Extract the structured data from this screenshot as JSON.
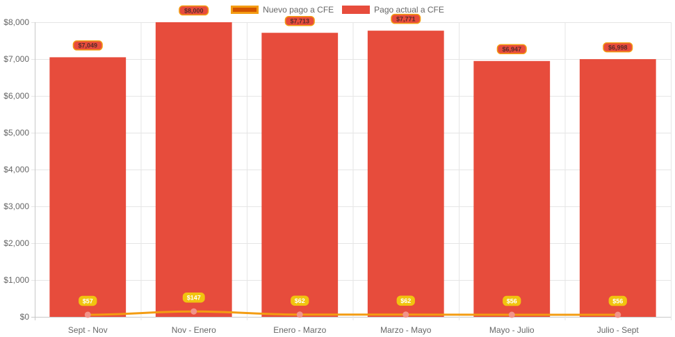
{
  "legend": {
    "line_label": "Nuevo pago a CFE",
    "bar_label": "Pago actual a CFE"
  },
  "colors": {
    "bar_fill": "#e74c3c",
    "line_stroke": "#f39c12",
    "line_point": "#f1948a",
    "bar_label_bg": "#e74c3c",
    "bar_label_border": "#f39c12",
    "line_label_bg": "#f1c40f",
    "grid": "#e5e5e5"
  },
  "chart_data": {
    "type": "bar",
    "categories": [
      "Sept - Nov",
      "Nov - Enero",
      "Enero - Marzo",
      "Marzo - Mayo",
      "Mayo - Julio",
      "Julio - Sept"
    ],
    "series": [
      {
        "name": "Pago actual a CFE",
        "type": "bar",
        "values": [
          7049,
          8000,
          7713,
          7771,
          6947,
          6998
        ]
      },
      {
        "name": "Nuevo pago a CFE",
        "type": "line",
        "values": [
          57,
          147,
          62,
          62,
          56,
          56
        ]
      }
    ],
    "bar_labels": [
      "$7,049",
      "$8,000",
      "$7,713",
      "$7,771",
      "$6,947",
      "$6,998"
    ],
    "line_labels": [
      "$57",
      "$147",
      "$62",
      "$62",
      "$56",
      "$56"
    ],
    "yticks": [
      {
        "value": 0,
        "label": "$0"
      },
      {
        "value": 1000,
        "label": "$1,000"
      },
      {
        "value": 2000,
        "label": "$2,000"
      },
      {
        "value": 3000,
        "label": "$3,000"
      },
      {
        "value": 4000,
        "label": "$4,000"
      },
      {
        "value": 5000,
        "label": "$5,000"
      },
      {
        "value": 6000,
        "label": "$6,000"
      },
      {
        "value": 7000,
        "label": "$7,000"
      },
      {
        "value": 8000,
        "label": "$8,000"
      }
    ],
    "ylim": [
      0,
      8000
    ],
    "grid": true,
    "legend_position": "top-center"
  }
}
